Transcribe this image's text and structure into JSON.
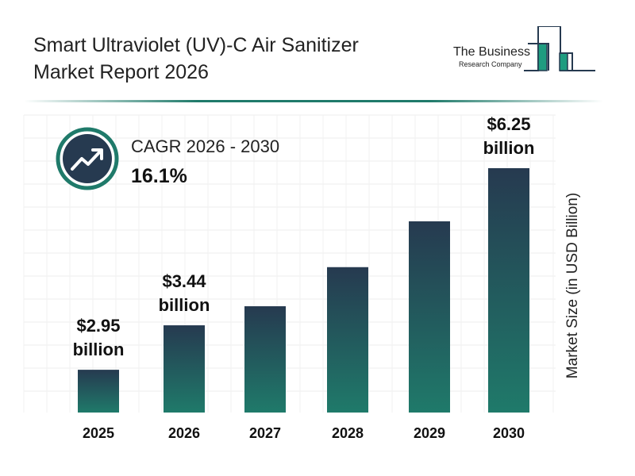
{
  "title_line1": "Smart Ultraviolet (UV)-C Air Sanitizer",
  "title_line2": "Market Report 2026",
  "logo": {
    "line1": "The Business",
    "line2": "Research Company"
  },
  "cagr": {
    "label": "CAGR 2026 - 2030",
    "value": "16.1%",
    "icon": "trending-up-icon"
  },
  "colors": {
    "bar_top": "#263a50",
    "bar_bottom": "#1f7a6a",
    "accent": "#1f7a6a"
  },
  "chart_data": {
    "type": "bar",
    "categories": [
      "2025",
      "2026",
      "2027",
      "2028",
      "2029",
      "2030"
    ],
    "values": [
      2.95,
      3.44,
      3.99,
      4.63,
      5.38,
      6.25
    ],
    "data_labels": [
      {
        "index": 0,
        "amount": "$2.95",
        "unit": "billion"
      },
      {
        "index": 1,
        "amount": "$3.44",
        "unit": "billion"
      },
      {
        "index": 5,
        "amount": "$6.25",
        "unit": "billion"
      }
    ],
    "ylabel": "Market Size (in USD Billion)",
    "grid": true
  }
}
